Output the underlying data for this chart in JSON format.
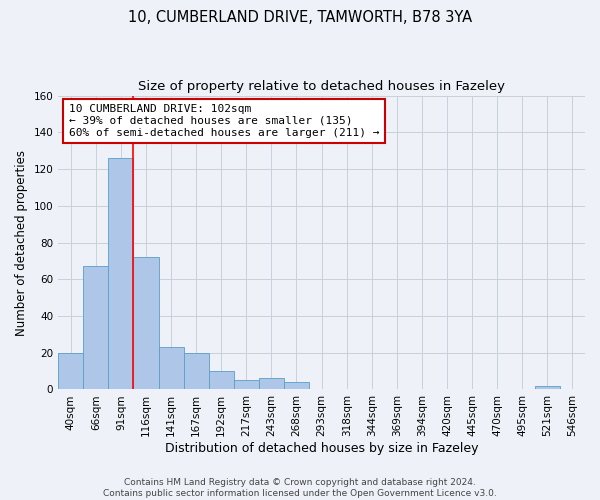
{
  "title1": "10, CUMBERLAND DRIVE, TAMWORTH, B78 3YA",
  "title2": "Size of property relative to detached houses in Fazeley",
  "xlabel": "Distribution of detached houses by size in Fazeley",
  "ylabel": "Number of detached properties",
  "bar_values": [
    20,
    67,
    126,
    72,
    23,
    20,
    10,
    5,
    6,
    4,
    0,
    0,
    0,
    0,
    0,
    0,
    0,
    0,
    0,
    2,
    0
  ],
  "bar_labels": [
    "40sqm",
    "66sqm",
    "91sqm",
    "116sqm",
    "141sqm",
    "167sqm",
    "192sqm",
    "217sqm",
    "243sqm",
    "268sqm",
    "293sqm",
    "318sqm",
    "344sqm",
    "369sqm",
    "394sqm",
    "420sqm",
    "445sqm",
    "470sqm",
    "495sqm",
    "521sqm",
    "546sqm"
  ],
  "bar_color": "#aec6e8",
  "bar_edge_color": "#5a9fc8",
  "red_line_x": 2.5,
  "annotation_line1": "10 CUMBERLAND DRIVE: 102sqm",
  "annotation_line2": "← 39% of detached houses are smaller (135)",
  "annotation_line3": "60% of semi-detached houses are larger (211) →",
  "annotation_box_color": "#ffffff",
  "annotation_box_edge_color": "#cc0000",
  "ylim": [
    0,
    160
  ],
  "yticks": [
    0,
    20,
    40,
    60,
    80,
    100,
    120,
    140,
    160
  ],
  "grid_color": "#c8d0dc",
  "background_color": "#eef2f8",
  "footer1": "Contains HM Land Registry data © Crown copyright and database right 2024.",
  "footer2": "Contains public sector information licensed under the Open Government Licence v3.0.",
  "title1_fontsize": 10.5,
  "title2_fontsize": 9.5,
  "xlabel_fontsize": 9,
  "ylabel_fontsize": 8.5,
  "tick_label_fontsize": 7.5,
  "annotation_fontsize": 8,
  "footer_fontsize": 6.5
}
